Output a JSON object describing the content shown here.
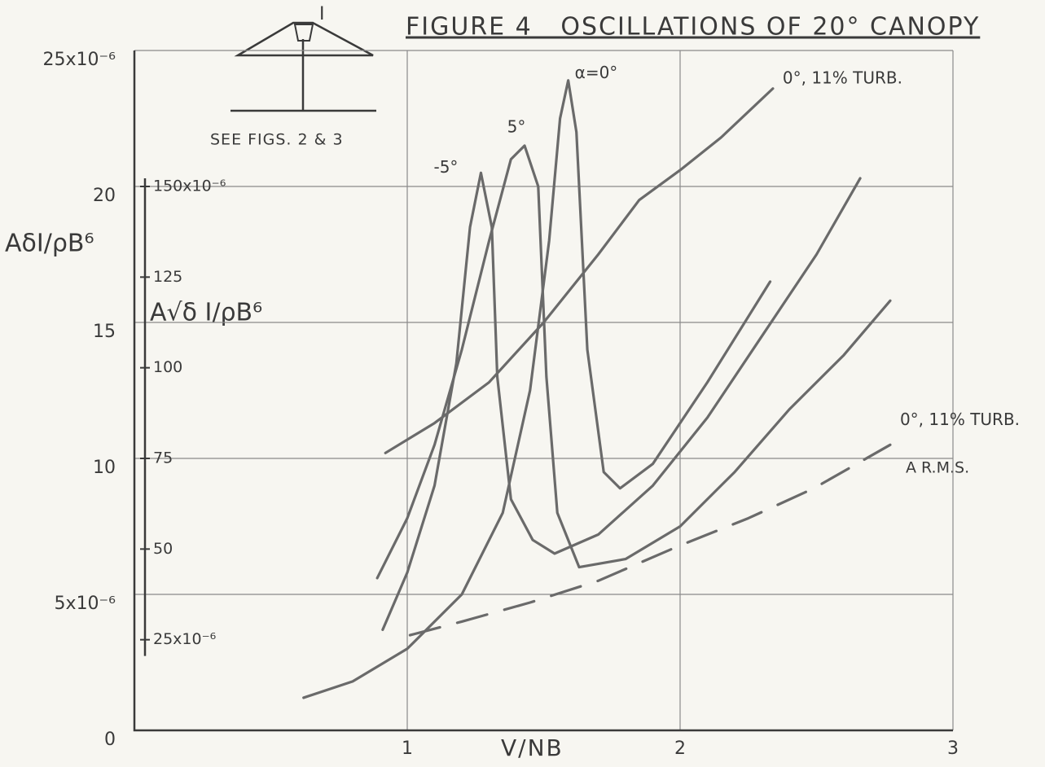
{
  "chart_data": {
    "type": "line",
    "title": "FIGURE 4   OSCILLATIONS OF 20° CANOPY",
    "x_label": "V/NB",
    "y_label": "AδI/ρB⁶",
    "y2_label": "A√δ I/ρB⁶",
    "annotations": [
      "SEE FIGS. 2 & 3",
      "I",
      "A R.M.S."
    ],
    "xlim": [
      0,
      3
    ],
    "xticks": [
      1,
      2,
      3
    ],
    "ylim": [
      0,
      25
    ],
    "yticks": [
      0,
      {
        "value": 5,
        "label": "5x10⁻⁶"
      },
      10,
      15,
      20,
      {
        "value": 25,
        "label": "25x10⁻⁶"
      }
    ],
    "y2lim": [
      0,
      187.5
    ],
    "y2ticks": [
      {
        "value": 25,
        "label": "25x10⁻⁶"
      },
      50,
      75,
      100,
      125,
      {
        "value": 150,
        "label": "150x10⁻⁶"
      }
    ],
    "grid": true,
    "series": [
      {
        "name": "-5°",
        "color": "#6a6a6a",
        "dash": false,
        "x": [
          0.91,
          1.0,
          1.1,
          1.18,
          1.23,
          1.27,
          1.31,
          1.33,
          1.38,
          1.46,
          1.54,
          1.7,
          1.9,
          2.1,
          2.3,
          2.5,
          2.66
        ],
        "values": [
          3.7,
          5.8,
          9.0,
          13.5,
          18.5,
          20.5,
          18.5,
          13,
          8.5,
          7.0,
          6.5,
          7.2,
          9.0,
          11.5,
          14.5,
          17.5,
          20.3
        ]
      },
      {
        "name": "5°",
        "color": "#6a6a6a",
        "dash": false,
        "x": [
          0.89,
          1.0,
          1.1,
          1.2,
          1.3,
          1.38,
          1.43,
          1.48,
          1.51,
          1.55,
          1.63,
          1.8,
          2.0,
          2.2,
          2.4,
          2.6,
          2.77
        ],
        "values": [
          5.6,
          7.8,
          10.5,
          14,
          18,
          21,
          21.5,
          20,
          13,
          8,
          6.0,
          6.3,
          7.5,
          9.5,
          11.8,
          13.8,
          15.8
        ]
      },
      {
        "name": "α=0°",
        "color": "#6a6a6a",
        "dash": false,
        "x": [
          0.62,
          0.8,
          1.0,
          1.2,
          1.35,
          1.45,
          1.52,
          1.56,
          1.59,
          1.62,
          1.66,
          1.72,
          1.78,
          1.9,
          2.1,
          2.33
        ],
        "values": [
          1.2,
          1.8,
          3.0,
          5.0,
          8.0,
          12.5,
          18,
          22.5,
          23.9,
          22,
          14,
          9.5,
          8.9,
          9.8,
          12.8,
          16.5
        ]
      },
      {
        "name": "0°, 11% TURB.",
        "color": "#6a6a6a",
        "dash": false,
        "x": [
          0.92,
          1.1,
          1.3,
          1.5,
          1.7,
          1.85,
          2.0,
          2.15,
          2.34
        ],
        "values": [
          10.2,
          11.3,
          12.8,
          15.0,
          17.5,
          19.5,
          20.6,
          21.8,
          23.6
        ]
      },
      {
        "name": "0°, 11% TURB.",
        "color": "#6a6a6a",
        "dash": true,
        "x": [
          1.01,
          1.2,
          1.45,
          1.7,
          2.0,
          2.25,
          2.49,
          2.77
        ],
        "values": [
          3.5,
          4.0,
          4.7,
          5.5,
          6.8,
          7.8,
          8.9,
          10.5
        ]
      }
    ]
  }
}
